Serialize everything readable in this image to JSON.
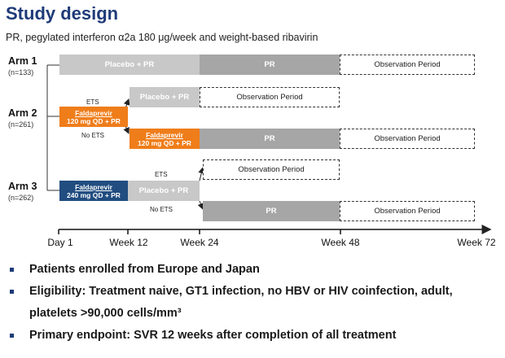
{
  "title": "Study design",
  "subtitle": "PR, pegylated interferon α2a 180 μg/week and weight-based ribavirin",
  "arms": [
    {
      "label": "Arm 1",
      "n": "(n=133)"
    },
    {
      "label": "Arm 2",
      "n": "(n=261)"
    },
    {
      "label": "Arm 3",
      "n": "(n=262)"
    }
  ],
  "bars": {
    "arm1_placebo_pr": "Placebo + PR",
    "arm1_pr": "PR",
    "arm1_obs": "Observation Period",
    "arm2_drug_name": "Faldaprevir",
    "arm2_drug_dose": "120 mg QD + PR",
    "arm2_ets_placebo_pr": "Placebo + PR",
    "arm2_ets_obs": "Observation Period",
    "arm2_noets_drug_name": "Faldaprevir",
    "arm2_noets_drug_dose": "120 mg QD + PR",
    "arm2_noets_pr": "PR",
    "arm2_noets_obs": "Observation Period",
    "arm3_drug_name": "Faldaprevir",
    "arm3_drug_dose": "240 mg QD + PR",
    "arm3_placebo_pr": "Placebo + PR",
    "arm3_ets_obs": "Observation Period",
    "arm3_noets_pr": "PR",
    "arm3_noets_obs": "Observation Period"
  },
  "branch_labels": {
    "arm2_ets": "ETS",
    "arm2_no_ets": "No ETS",
    "arm3_ets": "ETS",
    "arm3_no_ets": "No ETS"
  },
  "timeline": [
    "Day 1",
    "Week 12",
    "Week 24",
    "Week 48",
    "Week 72"
  ],
  "bullets": [
    "Patients enrolled from Europe and Japan",
    "Eligibility: Treatment naive, GT1 infection, no HBV or HIV coinfection, adult, platelets >90,000 cells/mm³",
    "Primary endpoint: SVR 12 weeks after completion of all treatment"
  ],
  "colors": {
    "title": "#1f3b78",
    "placebo": "#c8c8c8",
    "pr": "#a6a6a6",
    "faldaprevir_120": "#ef7d1a",
    "faldaprevir_240": "#214d80"
  }
}
